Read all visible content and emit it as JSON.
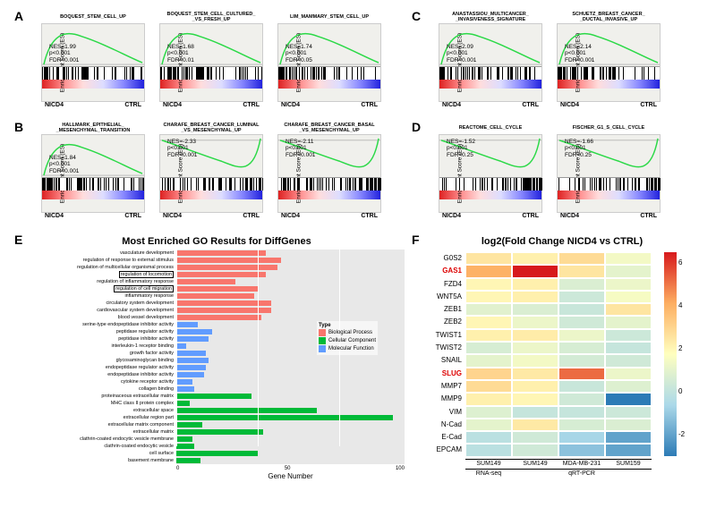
{
  "panels": {
    "A": {
      "label": "A",
      "plots": [
        {
          "title": "BOQUEST_STEM_CELL_UP",
          "nes": "NES=1.99",
          "p": "p<0.001",
          "fdr": "FDR<0.001",
          "curve_direction": "up",
          "stats_pos": "left",
          "barcode_density": "left",
          "xleft": "NICD4",
          "xright": "CTRL"
        },
        {
          "title": "BOQUEST_STEM_CELL_CULTURED_\n_VS_FRESH_UP",
          "nes": "NES=1.68",
          "p": "p<0.001",
          "fdr": "FDR<0.01",
          "curve_direction": "up",
          "stats_pos": "left",
          "barcode_density": "left",
          "xleft": "NICD4",
          "xright": "CTRL"
        },
        {
          "title": "LIM_MAMMARY_STEM_CELL_UP",
          "nes": "NES=1.74",
          "p": "p<0.001",
          "fdr": "FDR<0.05",
          "curve_direction": "up",
          "stats_pos": "left",
          "barcode_density": "left",
          "xleft": "NICD4",
          "xright": "CTRL"
        }
      ]
    },
    "B": {
      "label": "B",
      "plots": [
        {
          "title": "HALLMARK_EPITHELIAL_\n_MESENCHYMAL_TRANSITION",
          "nes": "NES=1.84",
          "p": "p<0.001",
          "fdr": "FDR<0.001",
          "curve_direction": "up",
          "stats_pos": "left",
          "barcode_density": "left",
          "xleft": "NICD4",
          "xright": "CTRL"
        },
        {
          "title": "CHARAFE_BREAST_CANCER_LUMINAL\n_VS_MESENCHYMAL_UP",
          "nes": "NES=-2.33",
          "p": "p<0.001",
          "fdr": "FDR<0.001",
          "curve_direction": "down",
          "stats_pos": "left",
          "barcode_density": "right",
          "xleft": "NICD4",
          "xright": "CTRL"
        },
        {
          "title": "CHARAFE_BREAST_CANCER_BASAL\n_VS_MESENCHYMAL_UP",
          "nes": "NES=-2.11",
          "p": "p<0.001",
          "fdr": "FDR<0.001",
          "curve_direction": "down",
          "stats_pos": "left",
          "barcode_density": "right",
          "xleft": "NICD4",
          "xright": "CTRL"
        }
      ]
    },
    "C": {
      "label": "C",
      "plots": [
        {
          "title": "ANASTASSIOU_MULTICANCER_\n_INVASIVENESS_SIGNATURE",
          "nes": "NES=2.09",
          "p": "p<0.001",
          "fdr": "FDR<0.001",
          "curve_direction": "up",
          "stats_pos": "left",
          "barcode_density": "left",
          "xleft": "NICD4",
          "xright": "CTRL"
        },
        {
          "title": "SCHUETZ_BREAST_CANCER_\n_DUCTAL_INVASIVE_UP",
          "nes": "NES=2.14",
          "p": "p<0.001",
          "fdr": "FDR<0.001",
          "curve_direction": "up",
          "stats_pos": "left",
          "barcode_density": "left",
          "xleft": "NICD4",
          "xright": "CTRL"
        }
      ]
    },
    "D": {
      "label": "D",
      "plots": [
        {
          "title": "REACTOME_CELL_CYCLE",
          "nes": "NES=-1.52",
          "p": "p<0.001",
          "fdr": "FDR<0.25",
          "curve_direction": "down",
          "stats_pos": "left",
          "barcode_density": "right",
          "xleft": "NICD4",
          "xright": "CTRL"
        },
        {
          "title": "FISCHER_G1_S_CELL_CYCLE",
          "nes": "NES=-1.66",
          "p": "p<0.001",
          "fdr": "FDR<0.25",
          "curve_direction": "down",
          "stats_pos": "left",
          "barcode_density": "right",
          "xleft": "NICD4",
          "xright": "CTRL"
        }
      ]
    }
  },
  "enrichment": {
    "yaxis": "Enrichment Score (ES)",
    "curve_color": "#2bd947",
    "bg_color": "#f0f0ec",
    "gradient": "linear-gradient(to right, #d22, #f88, #fdd, #ddf, #88f, #22d)"
  },
  "panelE": {
    "label": "E",
    "title": "Most Enriched GO Results for DiffGenes",
    "xaxis_label": "Gene Number",
    "xmax": 140,
    "xticks": [
      0,
      50,
      100
    ],
    "colors": {
      "Biological Process": "#f8766d",
      "Cellular Component": "#00ba38",
      "Molecular Function": "#619cff"
    },
    "legend_title": "Type",
    "rows": [
      {
        "label": "vasculature development",
        "val": 55,
        "type": "Biological Process",
        "boxed": false
      },
      {
        "label": "regulation of response to external stimulus",
        "val": 64,
        "type": "Biological Process",
        "boxed": false
      },
      {
        "label": "regulation of multicellular organismal process",
        "val": 62,
        "type": "Biological Process",
        "boxed": false
      },
      {
        "label": "regulation of locomotion",
        "val": 55,
        "type": "Biological Process",
        "boxed": true
      },
      {
        "label": "regulation of inflammatory response",
        "val": 36,
        "type": "Biological Process",
        "boxed": false
      },
      {
        "label": "regulation of cell migration",
        "val": 50,
        "type": "Biological Process",
        "boxed": true
      },
      {
        "label": "inflammatory response",
        "val": 48,
        "type": "Biological Process",
        "boxed": false
      },
      {
        "label": "circulatory system development",
        "val": 58,
        "type": "Biological Process",
        "boxed": false
      },
      {
        "label": "cardiovascular system development",
        "val": 58,
        "type": "Biological Process",
        "boxed": false
      },
      {
        "label": "blood vessel development",
        "val": 52,
        "type": "Biological Process",
        "boxed": false
      },
      {
        "label": "serine-type endopeptidase inhibitor activity",
        "val": 13,
        "type": "Molecular Function",
        "boxed": false
      },
      {
        "label": "peptidase regulator activity",
        "val": 22,
        "type": "Molecular Function",
        "boxed": false
      },
      {
        "label": "peptidase inhibitor activity",
        "val": 20,
        "type": "Molecular Function",
        "boxed": false
      },
      {
        "label": "interleukin-1 receptor binding",
        "val": 6,
        "type": "Molecular Function",
        "boxed": false
      },
      {
        "label": "growth factor activity",
        "val": 18,
        "type": "Molecular Function",
        "boxed": false
      },
      {
        "label": "glycosaminoglycan binding",
        "val": 20,
        "type": "Molecular Function",
        "boxed": false
      },
      {
        "label": "endopeptidase regulator activity",
        "val": 18,
        "type": "Molecular Function",
        "boxed": false
      },
      {
        "label": "endopeptidase inhibitor activity",
        "val": 17,
        "type": "Molecular Function",
        "boxed": false
      },
      {
        "label": "cytokine receptor activity",
        "val": 10,
        "type": "Molecular Function",
        "boxed": false
      },
      {
        "label": "collagen binding",
        "val": 11,
        "type": "Molecular Function",
        "boxed": false
      },
      {
        "label": "proteinaceous extracellular matrix",
        "val": 46,
        "type": "Cellular Component",
        "boxed": false
      },
      {
        "label": "MHC class II protein complex",
        "val": 8,
        "type": "Cellular Component",
        "boxed": false
      },
      {
        "label": "extracellular space",
        "val": 86,
        "type": "Cellular Component",
        "boxed": false
      },
      {
        "label": "extracellular region part",
        "val": 133,
        "type": "Cellular Component",
        "boxed": false
      },
      {
        "label": "extracellular matrix component",
        "val": 16,
        "type": "Cellular Component",
        "boxed": false
      },
      {
        "label": "extracellular matrix",
        "val": 53,
        "type": "Cellular Component",
        "boxed": false
      },
      {
        "label": "clathrin-coated endocytic vesicle membrane",
        "val": 10,
        "type": "Cellular Component",
        "boxed": false
      },
      {
        "label": "clathrin-coated endocytic vesicle",
        "val": 11,
        "type": "Cellular Component",
        "boxed": false
      },
      {
        "label": "cell surface",
        "val": 50,
        "type": "Cellular Component",
        "boxed": false
      },
      {
        "label": "basement membrane",
        "val": 15,
        "type": "Cellular Component",
        "boxed": false
      }
    ]
  },
  "panelF": {
    "label": "F",
    "title": "log2(Fold Change NICD4 vs CTRL)",
    "columns": [
      "SUM149",
      "SUM149",
      "MDA-MB-231",
      "SUM159"
    ],
    "column_group_1": "RNA-seq",
    "column_group_2": "qRT-PCR",
    "rows": [
      "G0S2",
      "GAS1",
      "FZD4",
      "WNT5A",
      "ZEB1",
      "ZEB2",
      "TWIST1",
      "TWIST2",
      "SNAIL",
      "SLUG",
      "MMP7",
      "MMP9",
      "VIM",
      "N-Cad",
      "E-Cad",
      "EPCAM"
    ],
    "highlight_rows": [
      "GAS1",
      "SLUG"
    ],
    "values": [
      [
        2.5,
        2.2,
        2.8,
        1.4
      ],
      [
        4.0,
        6.5,
        2.5,
        1.0
      ],
      [
        2.0,
        2.2,
        0.7,
        1.2
      ],
      [
        2.0,
        2.2,
        0.3,
        1.5
      ],
      [
        0.9,
        0.7,
        0.2,
        2.5
      ],
      [
        2.0,
        1.2,
        0.4,
        1.0
      ],
      [
        2.2,
        2.3,
        1.2,
        0.3
      ],
      [
        0.6,
        1.2,
        0.6,
        0.1
      ],
      [
        1.0,
        1.4,
        0.5,
        0.4
      ],
      [
        3.0,
        2.4,
        5.2,
        1.2
      ],
      [
        2.8,
        2.2,
        0.2,
        0.8
      ],
      [
        2.2,
        2.0,
        0.4,
        -3.0
      ],
      [
        0.8,
        0.1,
        0.1,
        0.3
      ],
      [
        1.0,
        2.4,
        0.6,
        0.7
      ],
      [
        -0.2,
        0.4,
        -0.7,
        -2.0
      ],
      [
        -0.2,
        0.4,
        -1.2,
        -2.0
      ]
    ],
    "colorbar": {
      "min": -3,
      "max": 6.5,
      "ticks": [
        -2,
        0,
        2,
        4,
        6
      ],
      "gradient": "linear-gradient(to bottom, #d7191c, #fdae61, #ffffbf, #abd9e9, #2c7bb6)"
    }
  }
}
